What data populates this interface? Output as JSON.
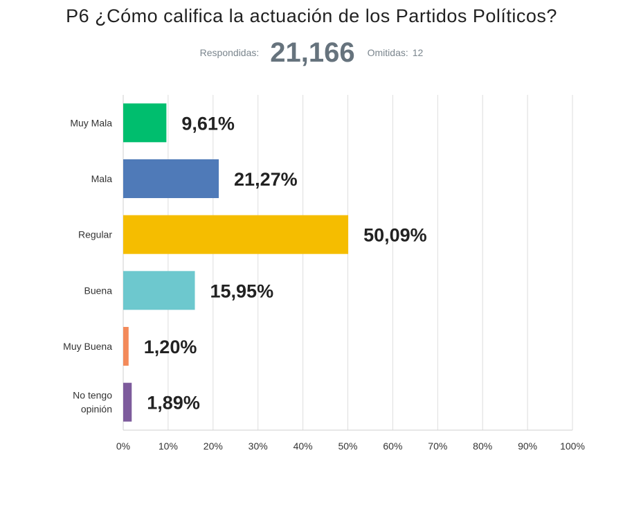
{
  "title": "P6 ¿Cómo califica la actuación de los Partidos Políticos?",
  "summary": {
    "answered_label": "Respondidas:",
    "answered_value": "21,166",
    "skipped_label": "Omitidas:",
    "skipped_value": "12"
  },
  "chart_data": {
    "type": "bar",
    "orientation": "horizontal",
    "categories": [
      "Muy Mala",
      "Mala",
      "Regular",
      "Buena",
      "Muy Buena",
      "No tengo opinión"
    ],
    "category_lines": [
      [
        "Muy Mala"
      ],
      [
        "Mala"
      ],
      [
        "Regular"
      ],
      [
        "Buena"
      ],
      [
        "Muy Buena"
      ],
      [
        "No tengo",
        "opinión"
      ]
    ],
    "values": [
      9.61,
      21.27,
      50.09,
      15.95,
      1.2,
      1.89
    ],
    "value_labels": [
      "9,61%",
      "21,27%",
      "50,09%",
      "15,95%",
      "1,20%",
      "1,89%"
    ],
    "colors": [
      "#00be6e",
      "#4f7ab8",
      "#f5bd00",
      "#6dc8ce",
      "#f38a5a",
      "#7d5b9c"
    ],
    "xlim": [
      0,
      100
    ],
    "xticks": [
      "0%",
      "10%",
      "20%",
      "30%",
      "40%",
      "50%",
      "60%",
      "70%",
      "80%",
      "90%",
      "100%"
    ],
    "grid": true,
    "gridline_color": "#dddddd"
  }
}
